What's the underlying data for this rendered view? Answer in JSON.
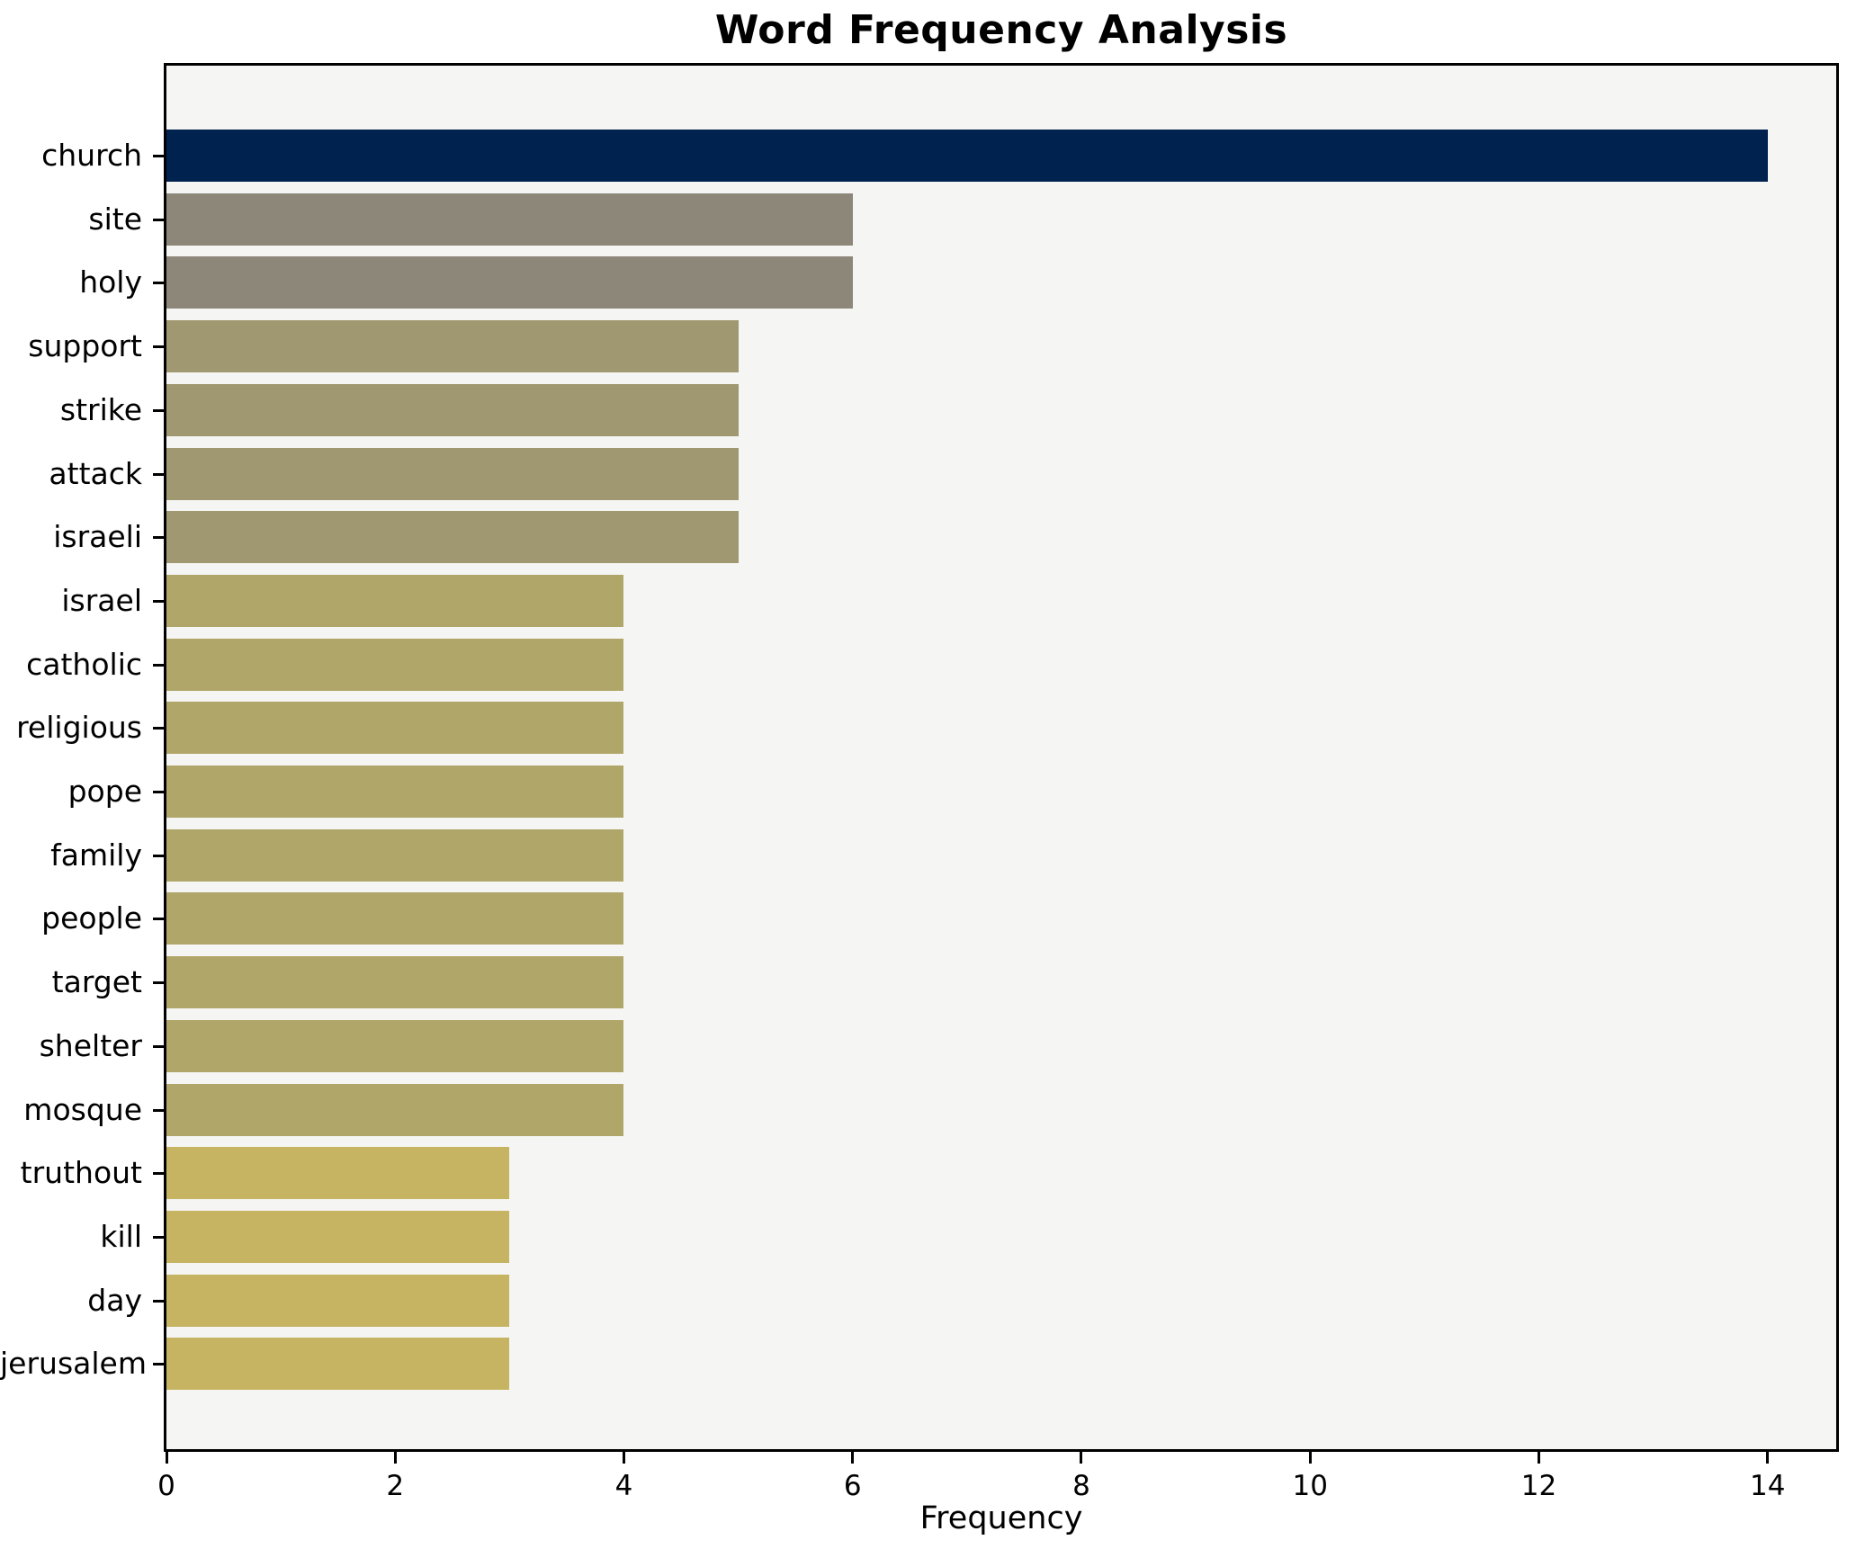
{
  "chart_data": {
    "type": "bar",
    "orientation": "horizontal",
    "title": "Word Frequency Analysis",
    "xlabel": "Frequency",
    "ylabel": "",
    "categories": [
      "church",
      "site",
      "holy",
      "support",
      "strike",
      "attack",
      "israeli",
      "israel",
      "catholic",
      "religious",
      "pope",
      "family",
      "people",
      "target",
      "shelter",
      "mosque",
      "truthout",
      "kill",
      "day",
      "jerusalem"
    ],
    "values": [
      14,
      6,
      6,
      5,
      5,
      5,
      5,
      4,
      4,
      4,
      4,
      4,
      4,
      4,
      4,
      4,
      3,
      3,
      3,
      3
    ],
    "bar_colors": [
      "#00224e",
      "#8d877a",
      "#8d877a",
      "#9f9870",
      "#9f9870",
      "#9f9870",
      "#9f9870",
      "#b0a669",
      "#b0a669",
      "#b0a669",
      "#b0a669",
      "#b0a669",
      "#b0a669",
      "#b0a669",
      "#b0a669",
      "#b0a669",
      "#c6b463",
      "#c6b463",
      "#c6b463",
      "#c6b463"
    ],
    "xlim": [
      0,
      14.6
    ],
    "xticks": [
      0,
      2,
      4,
      6,
      8,
      10,
      12,
      14
    ],
    "grid": false,
    "legend": null,
    "value_labels_shown": false,
    "colors": {
      "plot_background": "#f5f5f3",
      "figure_background": "#ffffff",
      "spine": "#000000",
      "text": "#000000"
    }
  }
}
